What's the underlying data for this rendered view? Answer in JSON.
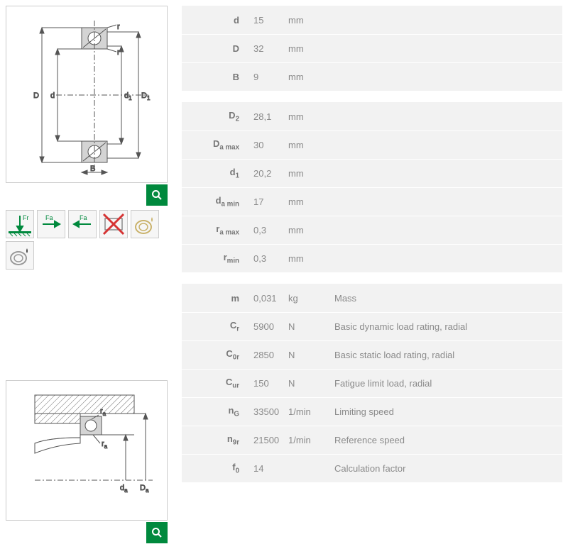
{
  "colors": {
    "bg_table": "#f2f2f2",
    "accent_green": "#00893d",
    "text": "#8a8a8a",
    "border": "#cccccc",
    "red": "#d63434",
    "hatch": "#6a6a6a",
    "ring": "#bdbdbd"
  },
  "table1": {
    "rows": [
      {
        "sym": "d",
        "sub": "",
        "val": "15",
        "unit": "mm"
      },
      {
        "sym": "D",
        "sub": "",
        "val": "32",
        "unit": "mm"
      },
      {
        "sym": "B",
        "sub": "",
        "val": "9",
        "unit": "mm"
      }
    ]
  },
  "table2": {
    "rows": [
      {
        "sym": "D",
        "sub": "2",
        "val": "28,1",
        "unit": "mm"
      },
      {
        "sym": "D",
        "sub": "a max",
        "val": "30",
        "unit": "mm"
      },
      {
        "sym": "d",
        "sub": "1",
        "val": "20,2",
        "unit": "mm"
      },
      {
        "sym": "d",
        "sub": "a min",
        "val": "17",
        "unit": "mm"
      },
      {
        "sym": "r",
        "sub": "a max",
        "val": "0,3",
        "unit": "mm"
      },
      {
        "sym": "r",
        "sub": "min",
        "val": "0,3",
        "unit": "mm"
      }
    ]
  },
  "table3": {
    "rows": [
      {
        "sym": "m",
        "sub": "",
        "val": "0,031",
        "unit": "kg",
        "desc": "Mass"
      },
      {
        "sym": "C",
        "sub": "r",
        "val": "5900",
        "unit": "N",
        "desc": "Basic dynamic load rating, radial"
      },
      {
        "sym": "C",
        "sub": "0r",
        "val": "2850",
        "unit": "N",
        "desc": "Basic static load rating, radial"
      },
      {
        "sym": "C",
        "sub": "ur",
        "val": "150",
        "unit": "N",
        "desc": "Fatigue limit load, radial"
      },
      {
        "sym": "n",
        "sub": "G",
        "val": "33500",
        "unit": "1/min",
        "desc": "Limiting speed"
      },
      {
        "sym": "n",
        "sub": "9r",
        "val": "21500",
        "unit": "1/min",
        "desc": "Reference speed"
      },
      {
        "sym": "f",
        "sub": "0",
        "val": "14",
        "unit": "",
        "desc": "Calculation factor"
      }
    ]
  },
  "icons": {
    "fr": "Fr",
    "fa": "Fa"
  }
}
